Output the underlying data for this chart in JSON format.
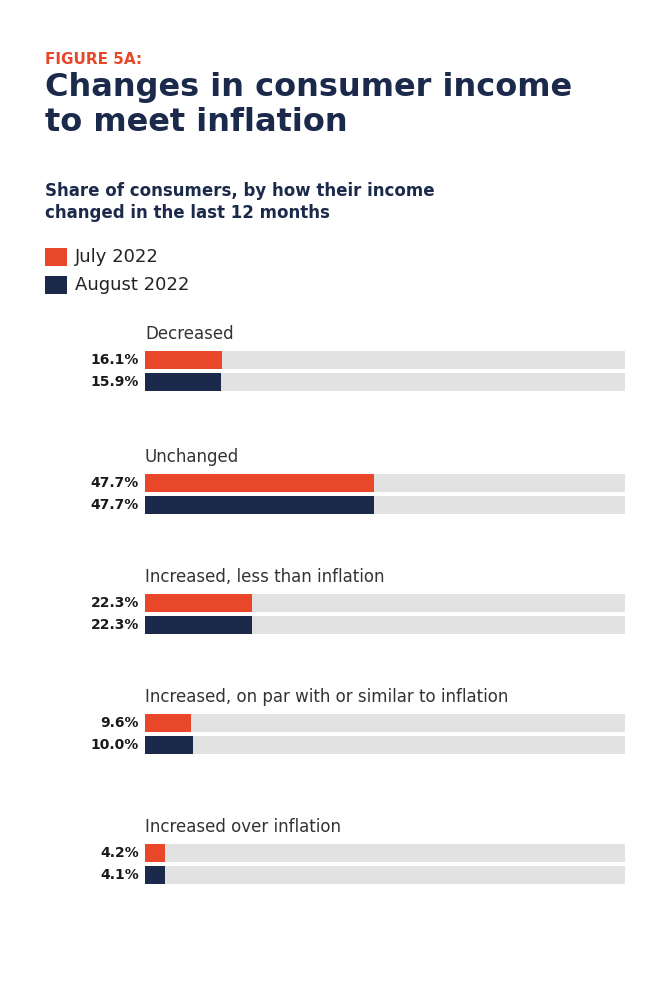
{
  "figure_label": "FIGURE 5A:",
  "title": "Changes in consumer income\nto meet inflation",
  "subtitle": "Share of consumers, by how their income\nchanged in the last 12 months",
  "legend": [
    "July 2022",
    "August 2022"
  ],
  "legend_colors": [
    "#E8472A",
    "#1B2A4A"
  ],
  "categories": [
    "Decreased",
    "Unchanged",
    "Increased, less than inflation",
    "Increased, on par with or similar to inflation",
    "Increased over inflation"
  ],
  "july_values": [
    16.1,
    47.7,
    22.3,
    9.6,
    4.2
  ],
  "august_values": [
    15.9,
    47.7,
    22.3,
    10.0,
    4.1
  ],
  "july_labels": [
    "16.1%",
    "47.7%",
    "22.3%",
    "9.6%",
    "4.2%"
  ],
  "august_labels": [
    "15.9%",
    "47.7%",
    "22.3%",
    "10.0%",
    "4.1%"
  ],
  "bar_color_july": "#E8472A",
  "bar_color_august": "#1B2A4A",
  "bar_bg_color": "#E2E2E2",
  "max_value": 100,
  "figure_label_color": "#E8472A",
  "title_color": "#1B2A4A",
  "subtitle_color": "#1B2A4A",
  "label_color": "#1a1a1a",
  "background_color": "#FFFFFF"
}
